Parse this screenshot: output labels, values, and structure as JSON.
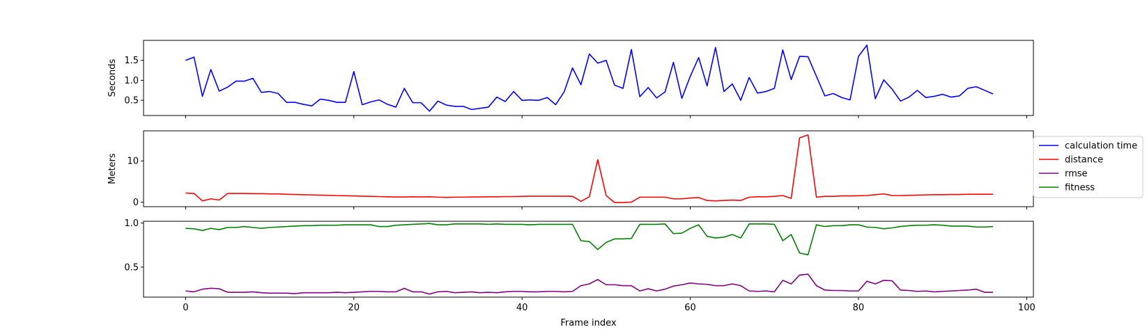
{
  "chart_data": [
    {
      "type": "line",
      "id": "time",
      "xlabel": "",
      "ylabel": "Seconds",
      "xlim": [
        -5,
        100.8
      ],
      "ylim": [
        0.12,
        2.0
      ],
      "yticks": [
        0.5,
        1.0,
        1.5
      ],
      "ytick_labels": [
        "0.5",
        "1.0",
        "1.5"
      ],
      "xticks": [
        0,
        20,
        40,
        60,
        80,
        100
      ],
      "xtick_labels": [
        "",
        "",
        "",
        "",
        "",
        ""
      ],
      "series": [
        {
          "legend_key": "calculation_time",
          "color": "#0000ff",
          "values": [
            1.5,
            1.58,
            0.6,
            1.27,
            0.73,
            0.83,
            0.98,
            0.98,
            1.05,
            0.7,
            0.72,
            0.67,
            0.45,
            0.45,
            0.4,
            0.36,
            0.53,
            0.5,
            0.45,
            0.45,
            1.22,
            0.39,
            0.46,
            0.51,
            0.4,
            0.33,
            0.8,
            0.44,
            0.44,
            0.23,
            0.48,
            0.38,
            0.35,
            0.35,
            0.27,
            0.3,
            0.33,
            0.58,
            0.47,
            0.72,
            0.5,
            0.51,
            0.5,
            0.57,
            0.39,
            0.71,
            1.31,
            0.89,
            1.66,
            1.43,
            1.5,
            0.88,
            0.8,
            1.77,
            0.59,
            0.82,
            0.56,
            0.71,
            1.45,
            0.55,
            1.1,
            1.57,
            0.86,
            1.82,
            0.72,
            0.91,
            0.5,
            1.07,
            0.68,
            0.72,
            0.8,
            1.76,
            1.02,
            1.6,
            1.59,
            1.1,
            0.61,
            0.67,
            0.57,
            0.51,
            1.6,
            1.88,
            0.54,
            1.01,
            0.78,
            0.48,
            0.58,
            0.75,
            0.57,
            0.6,
            0.65,
            0.58,
            0.61,
            0.8,
            0.84,
            0.75,
            0.66
          ]
        }
      ]
    },
    {
      "type": "line",
      "id": "distance",
      "xlabel": "",
      "ylabel": "Meters",
      "xlim": [
        -5,
        100.8
      ],
      "ylim": [
        -1.1,
        17.3
      ],
      "yticks": [
        0,
        10
      ],
      "ytick_labels": [
        "0",
        "10"
      ],
      "xticks": [
        0,
        20,
        40,
        60,
        80,
        100
      ],
      "xtick_labels": [
        "",
        "",
        "",
        "",
        "",
        ""
      ],
      "series": [
        {
          "legend_key": "distance",
          "color": "#ff0000",
          "values": [
            2.2,
            2.1,
            0.3,
            0.8,
            0.5,
            2.1,
            2.1,
            2.1,
            2.05,
            2.05,
            2.0,
            2.0,
            1.9,
            1.85,
            1.8,
            1.75,
            1.7,
            1.65,
            1.6,
            1.55,
            1.5,
            1.45,
            1.4,
            1.35,
            1.3,
            1.25,
            1.25,
            1.3,
            1.25,
            1.3,
            1.2,
            1.15,
            1.2,
            1.2,
            1.25,
            1.25,
            1.3,
            1.3,
            1.35,
            1.35,
            1.4,
            1.45,
            1.45,
            1.45,
            1.45,
            1.45,
            1.4,
            0.2,
            1.3,
            10.3,
            1.6,
            -0.1,
            -0.1,
            0.0,
            1.2,
            1.2,
            1.2,
            1.2,
            0.8,
            0.8,
            1.0,
            1.1,
            0.4,
            0.3,
            0.4,
            0.5,
            0.4,
            1.2,
            1.3,
            1.3,
            1.4,
            1.6,
            0.9,
            15.6,
            16.3,
            1.2,
            1.4,
            1.4,
            1.5,
            1.5,
            1.55,
            1.6,
            1.8,
            2.0,
            1.6,
            1.6,
            1.65,
            1.7,
            1.75,
            1.8,
            1.8,
            1.85,
            1.85,
            1.9,
            1.9,
            1.9,
            1.9
          ]
        }
      ]
    },
    {
      "type": "line",
      "id": "scores",
      "xlabel": "Frame index",
      "ylabel": "",
      "xlim": [
        -5,
        100.8
      ],
      "ylim": [
        0.16,
        1.02
      ],
      "yticks": [
        0.5,
        1.0
      ],
      "ytick_labels": [
        "0.5",
        "1.0"
      ],
      "xticks": [
        0,
        20,
        40,
        60,
        80,
        100
      ],
      "xtick_labels": [
        "0",
        "20",
        "40",
        "60",
        "80",
        "100"
      ],
      "series": [
        {
          "legend_key": "fitness",
          "color": "#008000",
          "values": [
            0.94,
            0.935,
            0.915,
            0.94,
            0.925,
            0.95,
            0.95,
            0.96,
            0.95,
            0.94,
            0.95,
            0.955,
            0.96,
            0.965,
            0.97,
            0.97,
            0.975,
            0.975,
            0.975,
            0.98,
            0.98,
            0.98,
            0.98,
            0.96,
            0.96,
            0.975,
            0.98,
            0.985,
            0.99,
            0.995,
            0.98,
            0.98,
            0.99,
            0.99,
            0.99,
            0.99,
            0.985,
            0.99,
            0.985,
            0.985,
            0.985,
            0.98,
            0.985,
            0.985,
            0.985,
            0.985,
            0.985,
            0.8,
            0.79,
            0.7,
            0.78,
            0.82,
            0.82,
            0.825,
            0.985,
            0.985,
            0.985,
            0.99,
            0.88,
            0.885,
            0.94,
            0.98,
            0.85,
            0.83,
            0.84,
            0.87,
            0.83,
            0.99,
            0.99,
            0.99,
            0.985,
            0.8,
            0.87,
            0.66,
            0.64,
            0.98,
            0.96,
            0.97,
            0.97,
            0.98,
            0.98,
            0.955,
            0.95,
            0.935,
            0.945,
            0.96,
            0.97,
            0.975,
            0.975,
            0.98,
            0.975,
            0.965,
            0.965,
            0.965,
            0.955,
            0.955,
            0.96
          ]
        },
        {
          "legend_key": "rmse",
          "color": "#800080",
          "values": [
            0.23,
            0.22,
            0.25,
            0.26,
            0.255,
            0.215,
            0.215,
            0.215,
            0.22,
            0.21,
            0.205,
            0.205,
            0.205,
            0.2,
            0.21,
            0.21,
            0.21,
            0.21,
            0.215,
            0.21,
            0.215,
            0.22,
            0.225,
            0.225,
            0.22,
            0.22,
            0.26,
            0.22,
            0.22,
            0.195,
            0.22,
            0.225,
            0.21,
            0.215,
            0.22,
            0.21,
            0.215,
            0.21,
            0.22,
            0.225,
            0.225,
            0.22,
            0.22,
            0.225,
            0.225,
            0.22,
            0.225,
            0.29,
            0.31,
            0.36,
            0.3,
            0.3,
            0.29,
            0.29,
            0.23,
            0.255,
            0.23,
            0.25,
            0.285,
            0.3,
            0.32,
            0.31,
            0.305,
            0.29,
            0.29,
            0.31,
            0.29,
            0.23,
            0.225,
            0.23,
            0.22,
            0.35,
            0.31,
            0.41,
            0.42,
            0.29,
            0.24,
            0.235,
            0.235,
            0.23,
            0.23,
            0.34,
            0.31,
            0.35,
            0.345,
            0.24,
            0.235,
            0.225,
            0.23,
            0.22,
            0.225,
            0.23,
            0.235,
            0.24,
            0.25,
            0.215,
            0.215
          ]
        }
      ]
    }
  ],
  "legend": {
    "placement": "right",
    "items": [
      {
        "key": "calculation_time",
        "label": "calculation time",
        "color": "#0000ff"
      },
      {
        "key": "distance",
        "label": "distance",
        "color": "#ff0000"
      },
      {
        "key": "rmse",
        "label": "rmse",
        "color": "#800080"
      },
      {
        "key": "fitness",
        "label": "fitness",
        "color": "#008000"
      }
    ]
  }
}
